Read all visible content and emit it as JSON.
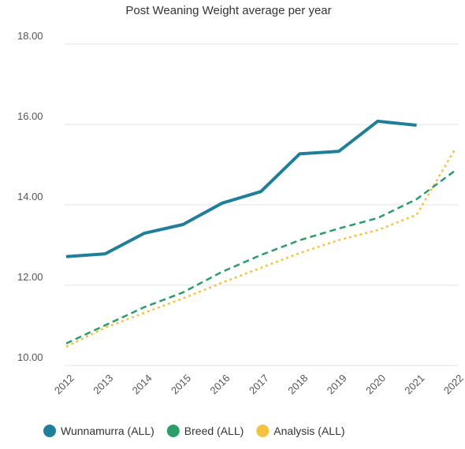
{
  "chart_data": {
    "type": "line",
    "title": "Post Weaning Weight average per year",
    "categories": [
      "2012",
      "2013",
      "2014",
      "2015",
      "2016",
      "2017",
      "2018",
      "2019",
      "2020",
      "2021",
      "2022"
    ],
    "ylim": [
      10,
      18
    ],
    "yticks": [
      {
        "value": 10,
        "label": "10.00"
      },
      {
        "value": 12,
        "label": "12.00"
      },
      {
        "value": 14,
        "label": "14.00"
      },
      {
        "value": 16,
        "label": "16.00"
      },
      {
        "value": 18,
        "label": "18.00"
      }
    ],
    "grid": true,
    "legend": "bottom",
    "series": [
      {
        "name": "Wunnamurra (ALL)",
        "color": "#1f7f99",
        "style": "solid",
        "values": [
          12.71,
          12.78,
          13.29,
          13.51,
          14.04,
          14.33,
          15.27,
          15.33,
          16.08,
          15.98,
          null
        ]
      },
      {
        "name": "Breed (ALL)",
        "color": "#2a9d6a",
        "style": "dashed",
        "values": [
          10.55,
          11.0,
          11.45,
          11.82,
          12.33,
          12.75,
          13.12,
          13.41,
          13.67,
          14.14,
          14.86
        ]
      },
      {
        "name": "Analysis (ALL)",
        "color": "#f5c13f",
        "style": "dotted",
        "values": [
          10.47,
          10.94,
          11.31,
          11.67,
          12.06,
          12.43,
          12.8,
          13.12,
          13.37,
          13.75,
          15.41
        ]
      }
    ]
  }
}
